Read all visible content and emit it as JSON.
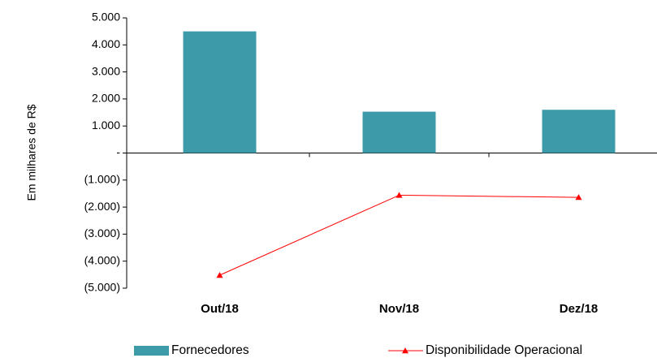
{
  "chart_data": {
    "type": "bar_line",
    "y_label": "Em milhares de R$",
    "categories": [
      "Out/18",
      "Nov/18",
      "Dez/18"
    ],
    "series": [
      {
        "name": "Fornecedores",
        "type": "bar",
        "color": "#3d9ba9",
        "values": [
          4500,
          1530,
          1600
        ]
      },
      {
        "name": "Disponibilidade Operacional",
        "type": "line",
        "color": "#ff0000",
        "marker": "triangle",
        "values": [
          -4520,
          -1560,
          -1640
        ]
      }
    ],
    "ylim": [
      -5000,
      5000
    ],
    "yticks": [
      {
        "value": -5000,
        "label": "(5.000)"
      },
      {
        "value": -4000,
        "label": "(4.000)"
      },
      {
        "value": -3000,
        "label": "(3.000)"
      },
      {
        "value": -2000,
        "label": "(2.000)"
      },
      {
        "value": -1000,
        "label": "(1.000)"
      },
      {
        "value": 0,
        "label": "-"
      },
      {
        "value": 1000,
        "label": "1.000"
      },
      {
        "value": 2000,
        "label": "2.000"
      },
      {
        "value": 3000,
        "label": "3.000"
      },
      {
        "value": 4000,
        "label": "4.000"
      },
      {
        "value": 5000,
        "label": "5.000"
      }
    ],
    "grid": false,
    "legend": "bottom"
  }
}
